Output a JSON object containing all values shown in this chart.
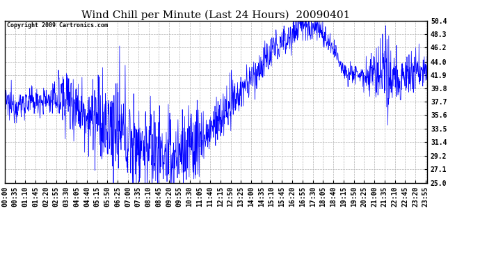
{
  "title": "Wind Chill per Minute (Last 24 Hours)  20090401",
  "copyright": "Copyright 2009 Cartronics.com",
  "line_color": "#0000FF",
  "background_color": "#FFFFFF",
  "grid_color": "#AAAAAA",
  "ylim": [
    25.0,
    50.4
  ],
  "yticks": [
    25.0,
    27.1,
    29.2,
    31.4,
    33.5,
    35.6,
    37.7,
    39.8,
    41.9,
    44.0,
    46.2,
    48.3,
    50.4
  ],
  "title_fontsize": 11,
  "tick_fontsize": 7,
  "n_minutes": 1440,
  "seed": 12345
}
